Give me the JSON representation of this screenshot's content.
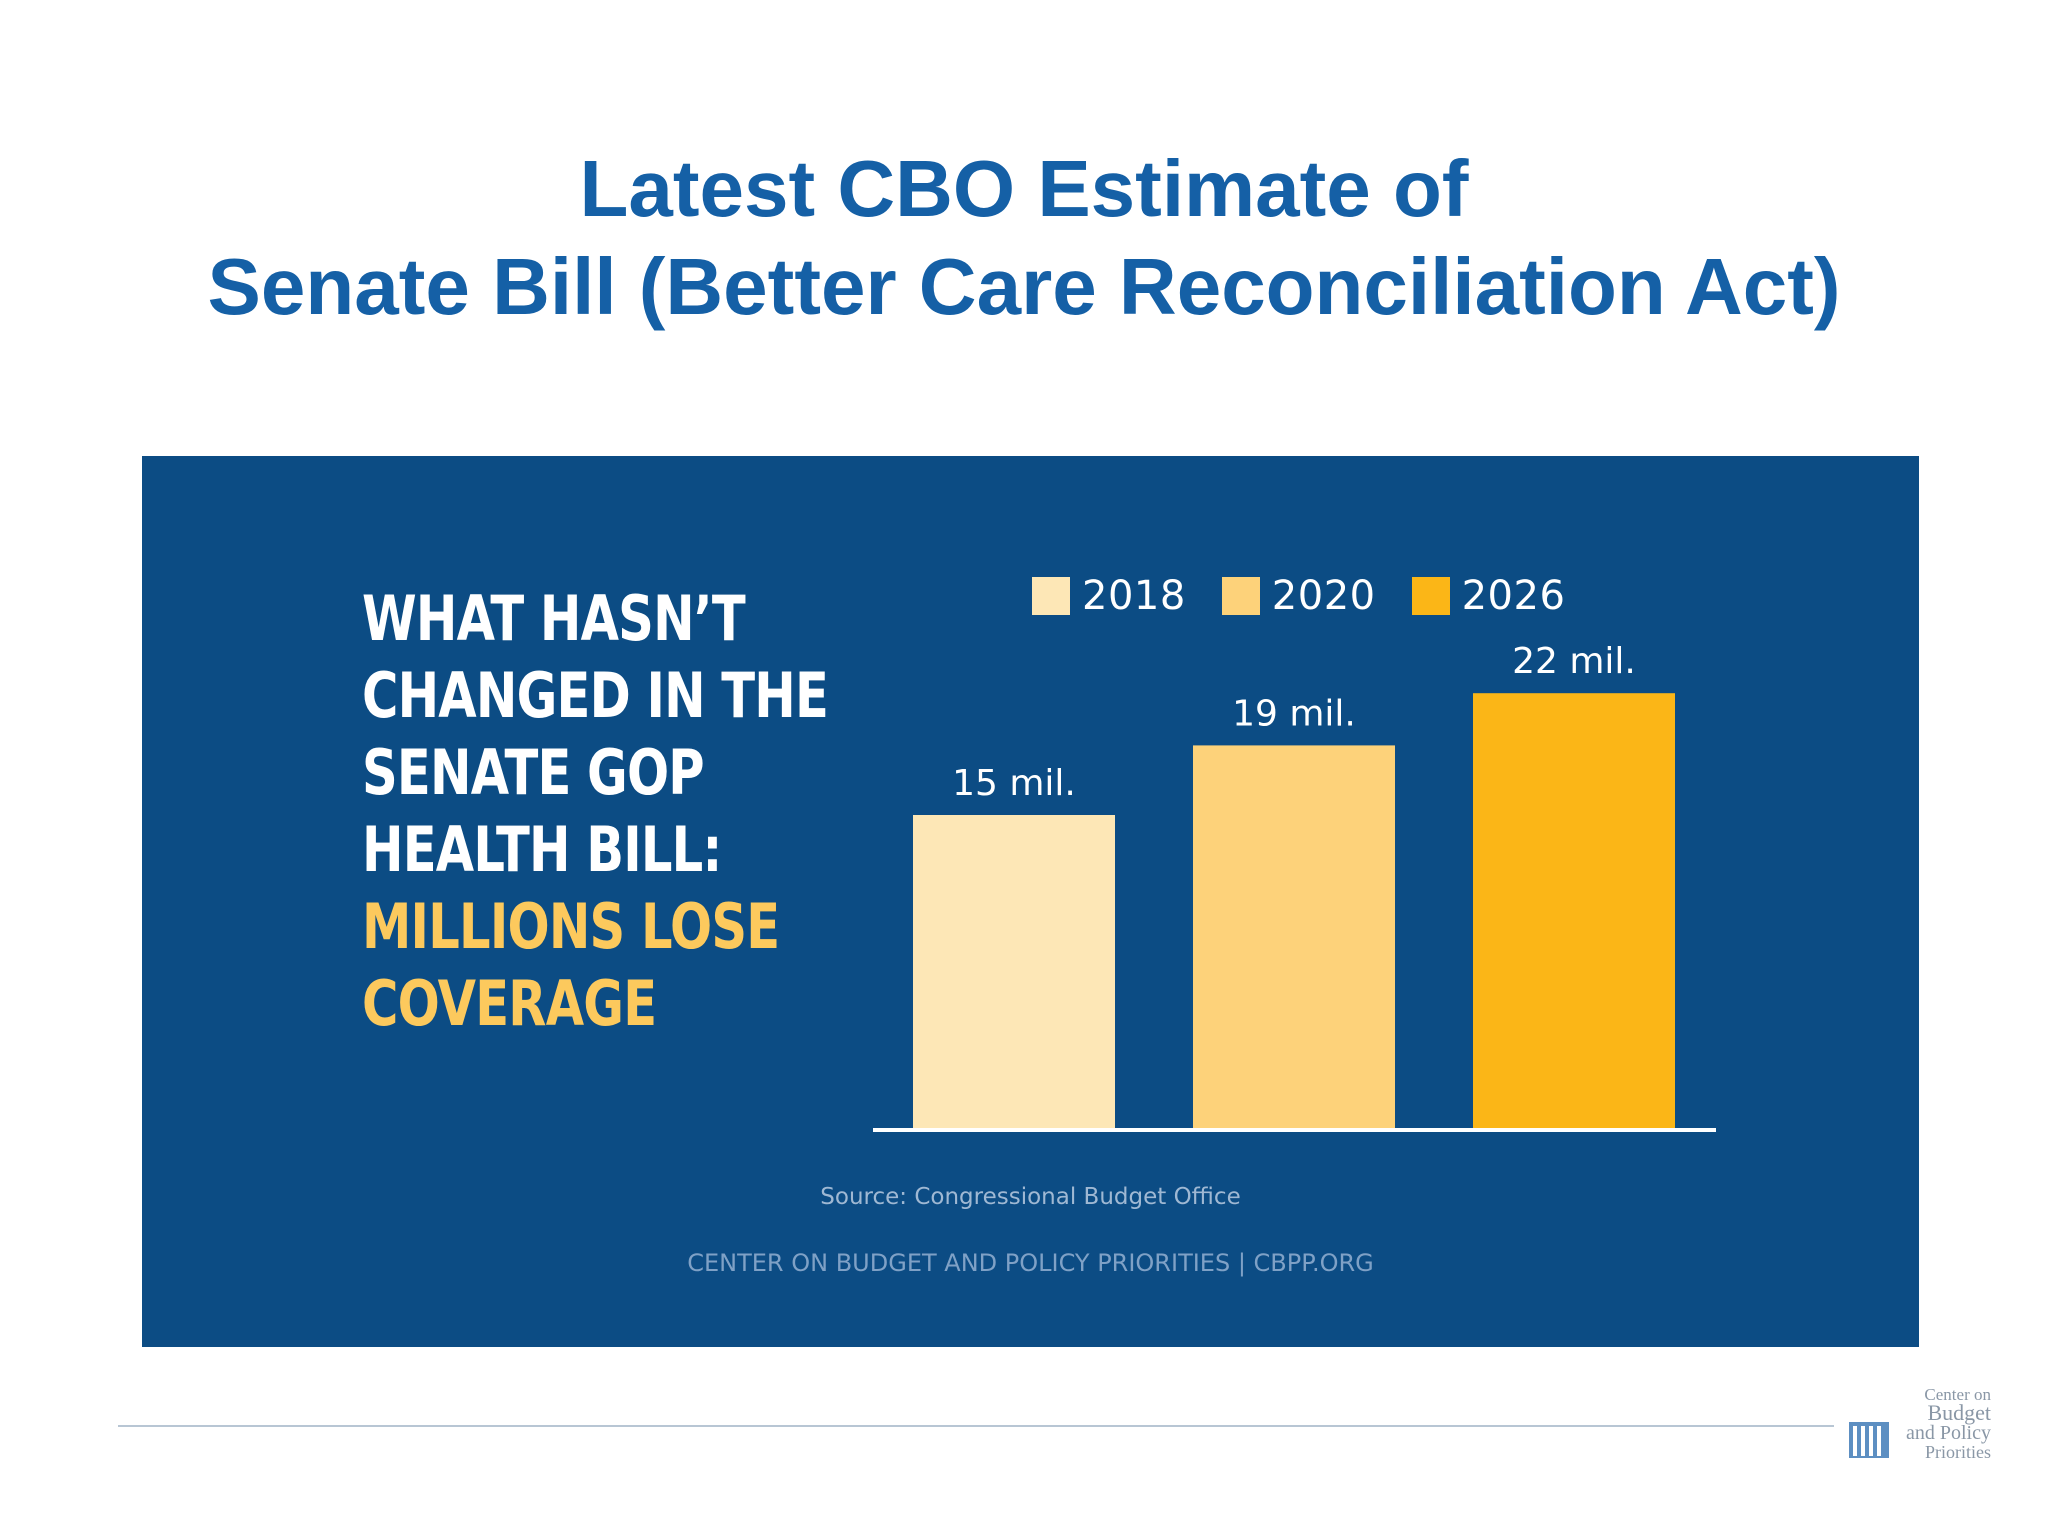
{
  "title": {
    "line1": "Latest CBO Estimate of",
    "line2": "Senate Bill (Better Care Reconciliation Act)"
  },
  "panel": {
    "headline_lines": [
      "WHAT HASN’T",
      "CHANGED IN THE",
      "SENATE GOP",
      "HEALTH BILL:"
    ],
    "headline_accent_lines": [
      "MILLIONS LOSE",
      "COVERAGE"
    ],
    "source": "Source: Congressional Budget Office",
    "org": "CENTER ON BUDGET AND POLICY PRIORITIES | CBPP.ORG"
  },
  "logo": {
    "lines": [
      "Center on",
      "Budget",
      "and Policy",
      "Priorities"
    ],
    "icon": "columns-building-icon"
  },
  "colors": {
    "title": "#1560a6",
    "panel_bg": "#0c4c84",
    "accent_text": "#fcc95d",
    "baseline": "#ffffff"
  },
  "chart_data": {
    "type": "bar",
    "categories": [
      "2018",
      "2020",
      "2026"
    ],
    "values": [
      15,
      19,
      22
    ],
    "data_labels": [
      "15 mil.",
      "19 mil.",
      "22 mil."
    ],
    "colors": [
      "#fde7b6",
      "#fdd27a",
      "#fbb617"
    ],
    "legend": [
      "2018",
      "2020",
      "2026"
    ],
    "legend_position": "top",
    "title": "",
    "xlabel": "",
    "ylabel": "",
    "ylim": [
      0,
      30
    ],
    "grid": false
  }
}
